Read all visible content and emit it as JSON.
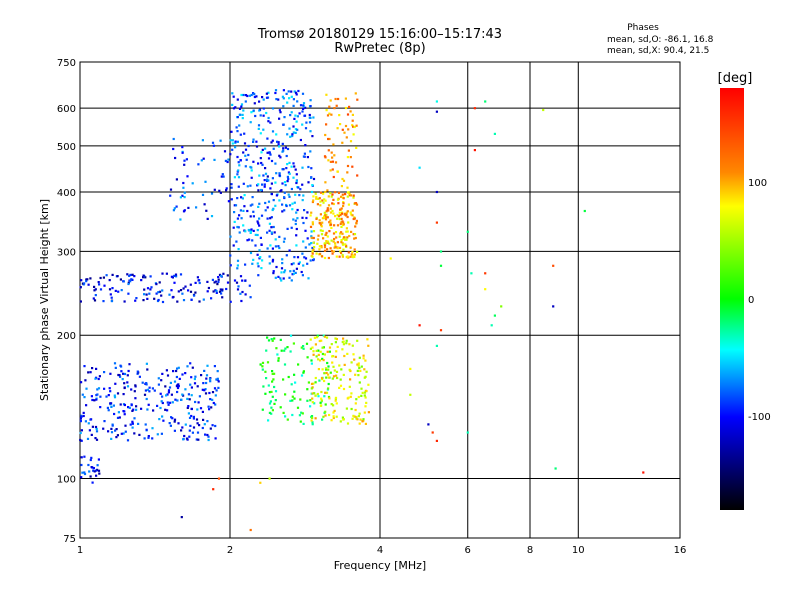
{
  "chart_data": {
    "type": "scatter",
    "title": "Tromsø 20180129  15:16:00–15:17:43",
    "subtitle": "RwPretec (8p)",
    "xlabel": "Frequency [MHz]",
    "ylabel": "Stationary phase Virtual Height [km]",
    "x_scale": "log",
    "y_scale": "log",
    "xlim": [
      1,
      16
    ],
    "ylim": [
      75,
      750
    ],
    "x_ticks": [
      1,
      2,
      4,
      6,
      8,
      10,
      16
    ],
    "x_tick_labels": [
      "1",
      "2",
      "4",
      "6",
      "8",
      "10",
      "16"
    ],
    "x_gridlines": [
      2,
      4,
      6,
      8,
      10
    ],
    "y_ticks": [
      75,
      100,
      200,
      300,
      400,
      500,
      600,
      750
    ],
    "y_tick_labels": [
      "75",
      "100",
      "200",
      "300",
      "400",
      "500",
      "600",
      "750"
    ],
    "y_gridlines": [
      100,
      200,
      300,
      400,
      500,
      600
    ],
    "grid": true,
    "info_box": {
      "title": "Phases",
      "line1": "mean, sd,O: -86.1, 16.8",
      "line2": "mean, sd,X:  90.4, 21.5"
    },
    "colorbar": {
      "label": "[deg]",
      "range": [
        -180,
        180
      ],
      "ticks": [
        100,
        0,
        -100
      ],
      "tick_labels": [
        "100",
        "0",
        "-100"
      ],
      "colors": [
        "#ff0000",
        "#ff8800",
        "#ffff00",
        "#00ff00",
        "#00ffff",
        "#0000ff",
        "#000000"
      ]
    },
    "clusters": [
      {
        "x_range": [
          1.0,
          1.9
        ],
        "y_range": [
          120,
          175
        ],
        "phase": -95,
        "n": 320
      },
      {
        "x_range": [
          1.0,
          1.1
        ],
        "y_range": [
          98,
          112
        ],
        "phase": -100,
        "n": 25
      },
      {
        "x_range": [
          1.0,
          2.2
        ],
        "y_range": [
          235,
          270
        ],
        "phase": -105,
        "n": 160
      },
      {
        "x_range": [
          1.5,
          2.6
        ],
        "y_range": [
          350,
          520
        ],
        "phase": -90,
        "n": 110
      },
      {
        "x_range": [
          2.0,
          2.95
        ],
        "y_range": [
          260,
          660
        ],
        "phase": -80,
        "n": 420
      },
      {
        "x_range": [
          2.3,
          3.2
        ],
        "y_range": [
          130,
          200
        ],
        "phase": -10,
        "n": 120
      },
      {
        "x_range": [
          2.9,
          3.6
        ],
        "y_range": [
          290,
          400
        ],
        "phase": 95,
        "n": 220
      },
      {
        "x_range": [
          3.1,
          3.6
        ],
        "y_range": [
          350,
          650
        ],
        "phase": 110,
        "n": 90
      },
      {
        "x_range": [
          2.9,
          3.8
        ],
        "y_range": [
          130,
          200
        ],
        "phase": 70,
        "n": 180
      }
    ],
    "scatter_points": [
      [
        4.2,
        290,
        80
      ],
      [
        5.2,
        620,
        -40
      ],
      [
        5.2,
        590,
        -120
      ],
      [
        4.8,
        450,
        -50
      ],
      [
        5.2,
        400,
        -120
      ],
      [
        5.2,
        345,
        150
      ],
      [
        5.3,
        300,
        -20
      ],
      [
        5.3,
        280,
        -10
      ],
      [
        6.2,
        600,
        160
      ],
      [
        6.5,
        620,
        -20
      ],
      [
        6.8,
        530,
        -30
      ],
      [
        6.2,
        490,
        170
      ],
      [
        6.0,
        330,
        -20
      ],
      [
        6.1,
        270,
        -30
      ],
      [
        6.5,
        270,
        150
      ],
      [
        6.8,
        220,
        -15
      ],
      [
        6.5,
        250,
        80
      ],
      [
        7.0,
        230,
        40
      ],
      [
        6.7,
        210,
        -30
      ],
      [
        8.5,
        595,
        60
      ],
      [
        8.9,
        280,
        140
      ],
      [
        8.9,
        230,
        -120
      ],
      [
        10.3,
        365,
        -10
      ],
      [
        9.0,
        105,
        -20
      ],
      [
        13.5,
        103,
        170
      ],
      [
        5.0,
        130,
        -120
      ],
      [
        5.1,
        125,
        150
      ],
      [
        5.2,
        120,
        160
      ],
      [
        4.8,
        210,
        170
      ],
      [
        5.3,
        205,
        150
      ],
      [
        5.2,
        190,
        -30
      ],
      [
        6.0,
        125,
        -30
      ],
      [
        4.6,
        150,
        60
      ],
      [
        4.6,
        170,
        80
      ],
      [
        1.6,
        83,
        -130
      ],
      [
        1.9,
        100,
        140
      ],
      [
        1.85,
        95,
        160
      ],
      [
        2.3,
        98,
        90
      ],
      [
        2.4,
        100,
        60
      ],
      [
        2.2,
        78,
        120
      ]
    ]
  }
}
